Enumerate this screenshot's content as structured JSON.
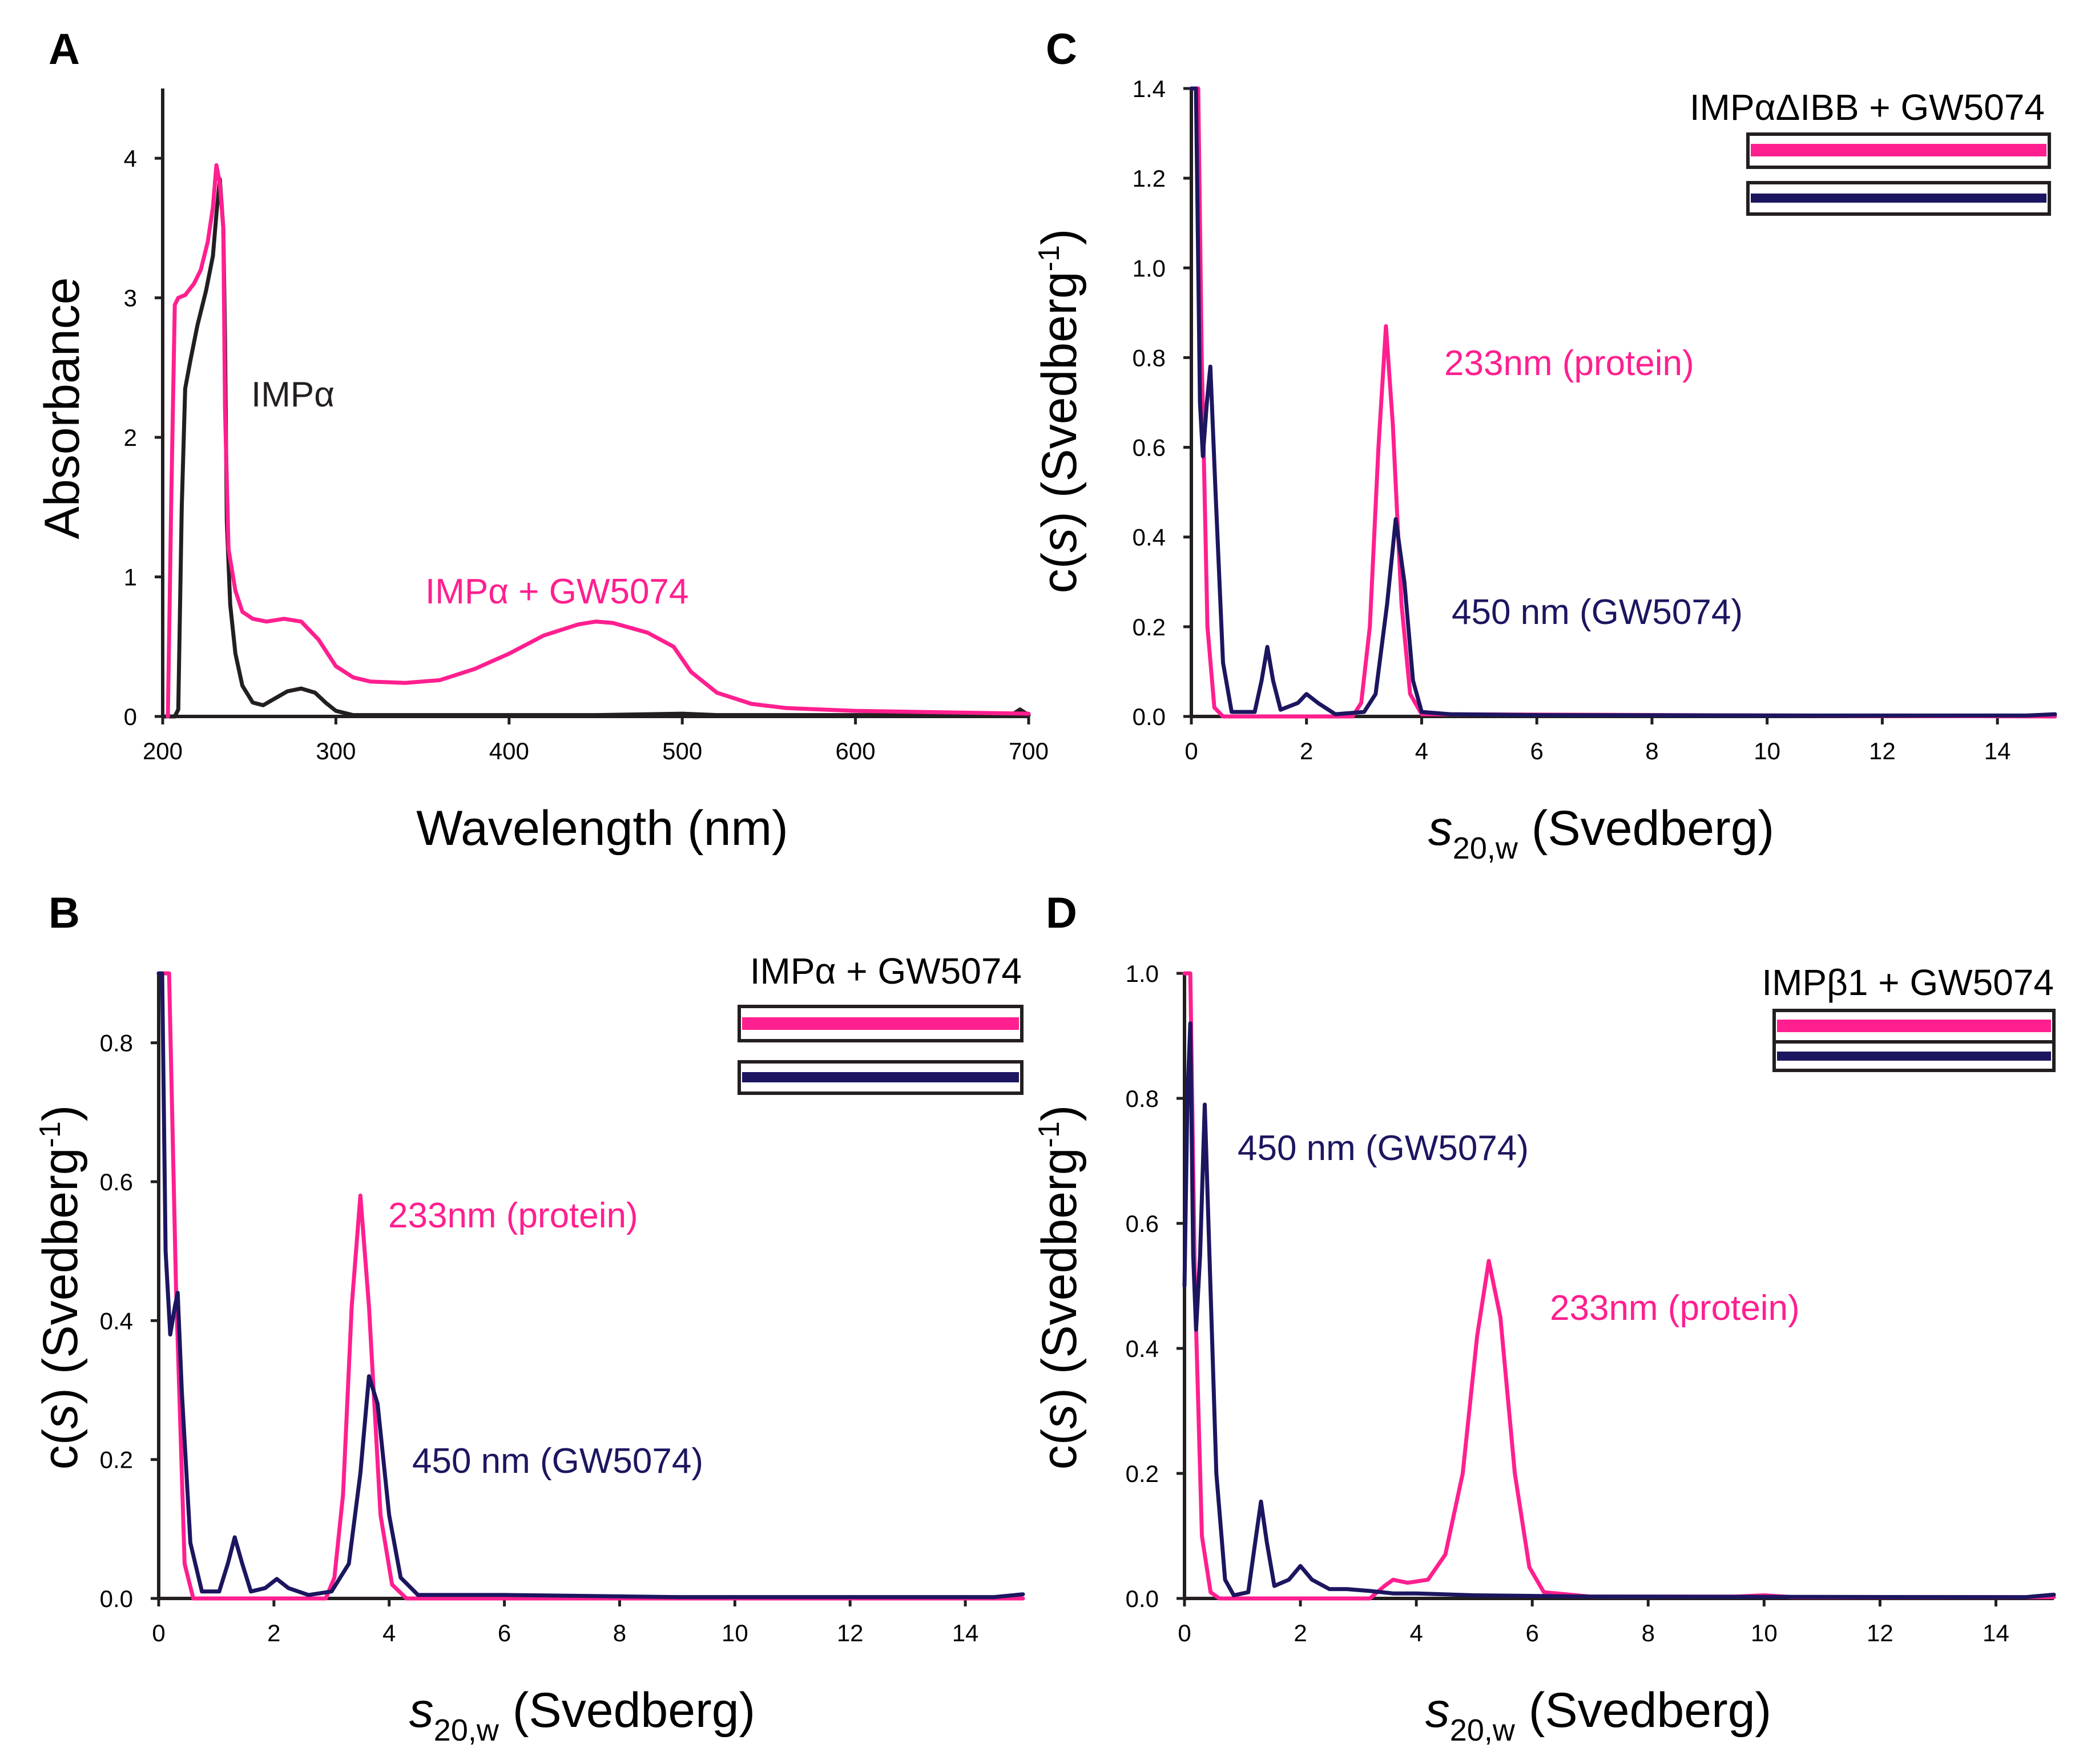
{
  "colors": {
    "magenta": "#ff1f8f",
    "navy": "#1c1660",
    "black": "#231f20"
  },
  "chart_data": [
    {
      "panel": "A",
      "type": "line",
      "xlabel": "Wavelength (nm)",
      "ylabel": "Absorbance",
      "xlim": [
        200,
        700
      ],
      "ylim": [
        0,
        4.5
      ],
      "xticks": [
        "200",
        "300",
        "400",
        "500",
        "600",
        "700"
      ],
      "yticks": [
        "0",
        "1",
        "2",
        "3",
        "4"
      ],
      "series": [
        {
          "name": "IMPα",
          "color": "#231f20",
          "points": [
            [
              200,
              0
            ],
            [
              207,
              0
            ],
            [
              209,
              0.05
            ],
            [
              211,
              1.5
            ],
            [
              213,
              2.35
            ],
            [
              216,
              2.55
            ],
            [
              220,
              2.8
            ],
            [
              225,
              3.05
            ],
            [
              229,
              3.3
            ],
            [
              231,
              3.6
            ],
            [
              233,
              3.85
            ],
            [
              235,
              3.5
            ],
            [
              236,
              2.7
            ],
            [
              237,
              1.4
            ],
            [
              239,
              0.8
            ],
            [
              242,
              0.45
            ],
            [
              246,
              0.22
            ],
            [
              252,
              0.1
            ],
            [
              258,
              0.08
            ],
            [
              265,
              0.13
            ],
            [
              272,
              0.18
            ],
            [
              280,
              0.2
            ],
            [
              288,
              0.17
            ],
            [
              294,
              0.1
            ],
            [
              300,
              0.04
            ],
            [
              310,
              0.01
            ],
            [
              350,
              0.01
            ],
            [
              400,
              0.01
            ],
            [
              450,
              0.01
            ],
            [
              500,
              0.02
            ],
            [
              520,
              0.01
            ],
            [
              600,
              0.01
            ],
            [
              650,
              0.01
            ],
            [
              690,
              0.01
            ],
            [
              695,
              0.05
            ],
            [
              700,
              0.01
            ]
          ]
        },
        {
          "name": "IMPα + GW5074",
          "color": "#ff1f8f",
          "points": [
            [
              203,
              0
            ],
            [
              205,
              1.6
            ],
            [
              207,
              2.95
            ],
            [
              209,
              3.0
            ],
            [
              213,
              3.02
            ],
            [
              218,
              3.1
            ],
            [
              222,
              3.2
            ],
            [
              226,
              3.4
            ],
            [
              229,
              3.65
            ],
            [
              231,
              3.95
            ],
            [
              233,
              3.82
            ],
            [
              235,
              3.5
            ],
            [
              236,
              2.2
            ],
            [
              238,
              1.2
            ],
            [
              242,
              0.9
            ],
            [
              246,
              0.75
            ],
            [
              252,
              0.7
            ],
            [
              260,
              0.68
            ],
            [
              270,
              0.7
            ],
            [
              280,
              0.68
            ],
            [
              290,
              0.55
            ],
            [
              300,
              0.36
            ],
            [
              310,
              0.28
            ],
            [
              320,
              0.25
            ],
            [
              340,
              0.24
            ],
            [
              360,
              0.26
            ],
            [
              380,
              0.34
            ],
            [
              400,
              0.45
            ],
            [
              420,
              0.58
            ],
            [
              440,
              0.66
            ],
            [
              450,
              0.68
            ],
            [
              460,
              0.67
            ],
            [
              480,
              0.6
            ],
            [
              495,
              0.5
            ],
            [
              505,
              0.32
            ],
            [
              520,
              0.17
            ],
            [
              540,
              0.09
            ],
            [
              560,
              0.06
            ],
            [
              600,
              0.04
            ],
            [
              650,
              0.03
            ],
            [
              700,
              0.02
            ]
          ]
        }
      ],
      "annotations": [
        {
          "text": "IMPα",
          "color": "#231f20"
        },
        {
          "text": "IMPα + GW5074",
          "color": "#ff1f8f"
        }
      ]
    },
    {
      "panel": "B",
      "type": "line",
      "xlabel_s": "s",
      "xlabel_sub": "20,w",
      "xlabel_rest": " (Svedberg)",
      "ylabel_pre": "c(",
      "ylabel_s": "s",
      "ylabel_post": ") (Svedberg",
      "ylabel_sup": "-1",
      "ylabel_close": ")",
      "xlim": [
        0,
        15
      ],
      "ylim": [
        0,
        0.9
      ],
      "xticks": [
        "0",
        "2",
        "4",
        "6",
        "8",
        "10",
        "12",
        "14"
      ],
      "yticks": [
        "0.0",
        "0.2",
        "0.4",
        "0.6",
        "0.8"
      ],
      "series": [
        {
          "name": "233nm (protein)",
          "color": "#ff1f8f",
          "points": [
            [
              0,
              0.9
            ],
            [
              0.18,
              0.9
            ],
            [
              0.3,
              0.45
            ],
            [
              0.45,
              0.05
            ],
            [
              0.6,
              0
            ],
            [
              2.9,
              0
            ],
            [
              3.05,
              0.03
            ],
            [
              3.2,
              0.15
            ],
            [
              3.35,
              0.42
            ],
            [
              3.5,
              0.58
            ],
            [
              3.65,
              0.42
            ],
            [
              3.85,
              0.12
            ],
            [
              4.05,
              0.02
            ],
            [
              4.3,
              0
            ],
            [
              15,
              0
            ]
          ]
        },
        {
          "name": "450 nm (GW5074)",
          "color": "#1c1660",
          "points": [
            [
              0,
              0.9
            ],
            [
              0.06,
              0.9
            ],
            [
              0.12,
              0.5
            ],
            [
              0.2,
              0.38
            ],
            [
              0.28,
              0.42
            ],
            [
              0.33,
              0.44
            ],
            [
              0.4,
              0.3
            ],
            [
              0.55,
              0.08
            ],
            [
              0.75,
              0.01
            ],
            [
              1.05,
              0.01
            ],
            [
              1.2,
              0.05
            ],
            [
              1.32,
              0.088
            ],
            [
              1.45,
              0.05
            ],
            [
              1.6,
              0.01
            ],
            [
              1.85,
              0.015
            ],
            [
              2.05,
              0.028
            ],
            [
              2.25,
              0.015
            ],
            [
              2.6,
              0.005
            ],
            [
              3.0,
              0.01
            ],
            [
              3.3,
              0.05
            ],
            [
              3.5,
              0.18
            ],
            [
              3.65,
              0.32
            ],
            [
              3.8,
              0.28
            ],
            [
              4.0,
              0.12
            ],
            [
              4.2,
              0.03
            ],
            [
              4.5,
              0.005
            ],
            [
              6,
              0.005
            ],
            [
              9,
              0.002
            ],
            [
              14.5,
              0.002
            ],
            [
              15,
              0.006
            ]
          ]
        }
      ],
      "annotations": [
        {
          "text": "233nm (protein)",
          "color": "#ff1f8f"
        },
        {
          "text": "450 nm (GW5074)",
          "color": "#1c1660"
        }
      ],
      "inset_title": "IMPα + GW5074"
    },
    {
      "panel": "C",
      "type": "line",
      "xlabel_s": "s",
      "xlabel_sub": "20,w",
      "xlabel_rest": " (Svedberg)",
      "ylabel_pre": "c(",
      "ylabel_s": "s",
      "ylabel_post": ") (Svedberg",
      "ylabel_sup": "-1",
      "ylabel_close": ")",
      "xlim": [
        0,
        15
      ],
      "ylim": [
        0,
        1.4
      ],
      "xticks": [
        "0",
        "2",
        "4",
        "6",
        "8",
        "10",
        "12",
        "14"
      ],
      "yticks": [
        "0.0",
        "0.2",
        "0.4",
        "0.6",
        "0.8",
        "1.0",
        "1.2",
        "1.4"
      ],
      "series": [
        {
          "name": "233nm (protein)",
          "color": "#ff1f8f",
          "points": [
            [
              0,
              1.4
            ],
            [
              0.12,
              1.4
            ],
            [
              0.18,
              0.8
            ],
            [
              0.28,
              0.2
            ],
            [
              0.4,
              0.02
            ],
            [
              0.55,
              0
            ],
            [
              2.8,
              0
            ],
            [
              2.95,
              0.03
            ],
            [
              3.1,
              0.2
            ],
            [
              3.25,
              0.6
            ],
            [
              3.38,
              0.87
            ],
            [
              3.5,
              0.65
            ],
            [
              3.65,
              0.25
            ],
            [
              3.8,
              0.05
            ],
            [
              4.0,
              0.005
            ],
            [
              15,
              0
            ]
          ]
        },
        {
          "name": "450 nm (GW5074)",
          "color": "#1c1660",
          "points": [
            [
              0,
              1.4
            ],
            [
              0.08,
              1.4
            ],
            [
              0.15,
              0.7
            ],
            [
              0.2,
              0.58
            ],
            [
              0.27,
              0.7
            ],
            [
              0.33,
              0.78
            ],
            [
              0.42,
              0.5
            ],
            [
              0.55,
              0.12
            ],
            [
              0.7,
              0.01
            ],
            [
              1.1,
              0.01
            ],
            [
              1.22,
              0.08
            ],
            [
              1.32,
              0.155
            ],
            [
              1.42,
              0.08
            ],
            [
              1.55,
              0.015
            ],
            [
              1.85,
              0.03
            ],
            [
              2.0,
              0.05
            ],
            [
              2.2,
              0.03
            ],
            [
              2.5,
              0.005
            ],
            [
              3.0,
              0.01
            ],
            [
              3.2,
              0.05
            ],
            [
              3.4,
              0.25
            ],
            [
              3.55,
              0.44
            ],
            [
              3.7,
              0.3
            ],
            [
              3.85,
              0.08
            ],
            [
              4.0,
              0.01
            ],
            [
              4.5,
              0.005
            ],
            [
              6,
              0.003
            ],
            [
              10,
              0.002
            ],
            [
              14.5,
              0.002
            ],
            [
              15,
              0.005
            ]
          ]
        }
      ],
      "annotations": [
        {
          "text": "233nm (protein)",
          "color": "#ff1f8f"
        },
        {
          "text": "450 nm (GW5074)",
          "color": "#1c1660"
        }
      ],
      "inset_title": "IMPαΔIBB + GW5074"
    },
    {
      "panel": "D",
      "type": "line",
      "xlabel_s": "s",
      "xlabel_sub": "20,w",
      "xlabel_rest": " (Svedberg)",
      "ylabel_pre": "c(",
      "ylabel_s": "s",
      "ylabel_post": ") (Svedberg",
      "ylabel_sup": "-1",
      "ylabel_close": ")",
      "xlim": [
        0,
        15
      ],
      "ylim": [
        0,
        1.0
      ],
      "xticks": [
        "0",
        "2",
        "4",
        "6",
        "8",
        "10",
        "12",
        "14"
      ],
      "yticks": [
        "0.0",
        "0.2",
        "0.4",
        "0.6",
        "0.8",
        "1.0"
      ],
      "series": [
        {
          "name": "233nm (protein)",
          "color": "#ff1f8f",
          "points": [
            [
              0,
              1.0
            ],
            [
              0.1,
              1.0
            ],
            [
              0.18,
              0.5
            ],
            [
              0.3,
              0.1
            ],
            [
              0.45,
              0.01
            ],
            [
              0.6,
              0
            ],
            [
              3.2,
              0
            ],
            [
              3.45,
              0.02
            ],
            [
              3.6,
              0.03
            ],
            [
              3.85,
              0.025
            ],
            [
              4.2,
              0.03
            ],
            [
              4.5,
              0.07
            ],
            [
              4.8,
              0.2
            ],
            [
              5.05,
              0.42
            ],
            [
              5.25,
              0.54
            ],
            [
              5.45,
              0.45
            ],
            [
              5.7,
              0.2
            ],
            [
              5.95,
              0.05
            ],
            [
              6.2,
              0.01
            ],
            [
              7,
              0.003
            ],
            [
              9.5,
              0.003
            ],
            [
              10,
              0.005
            ],
            [
              10.5,
              0.002
            ],
            [
              15,
              0.002
            ]
          ]
        },
        {
          "name": "450 nm (GW5074)",
          "color": "#1c1660",
          "points": [
            [
              0,
              0.5
            ],
            [
              0.05,
              0.8
            ],
            [
              0.1,
              0.92
            ],
            [
              0.15,
              0.55
            ],
            [
              0.2,
              0.43
            ],
            [
              0.27,
              0.55
            ],
            [
              0.35,
              0.79
            ],
            [
              0.43,
              0.55
            ],
            [
              0.55,
              0.2
            ],
            [
              0.7,
              0.03
            ],
            [
              0.85,
              0.005
            ],
            [
              1.1,
              0.01
            ],
            [
              1.22,
              0.09
            ],
            [
              1.32,
              0.155
            ],
            [
              1.42,
              0.09
            ],
            [
              1.55,
              0.02
            ],
            [
              1.8,
              0.03
            ],
            [
              2.0,
              0.052
            ],
            [
              2.2,
              0.03
            ],
            [
              2.5,
              0.015
            ],
            [
              2.8,
              0.015
            ],
            [
              3.2,
              0.012
            ],
            [
              3.6,
              0.008
            ],
            [
              4,
              0.008
            ],
            [
              5,
              0.005
            ],
            [
              7,
              0.003
            ],
            [
              14.5,
              0.002
            ],
            [
              15,
              0.006
            ]
          ]
        }
      ],
      "annotations": [
        {
          "text": "450 nm (GW5074)",
          "color": "#1c1660"
        },
        {
          "text": "233nm (protein)",
          "color": "#ff1f8f"
        }
      ],
      "inset_title": "IMPβ1 + GW5074"
    }
  ]
}
